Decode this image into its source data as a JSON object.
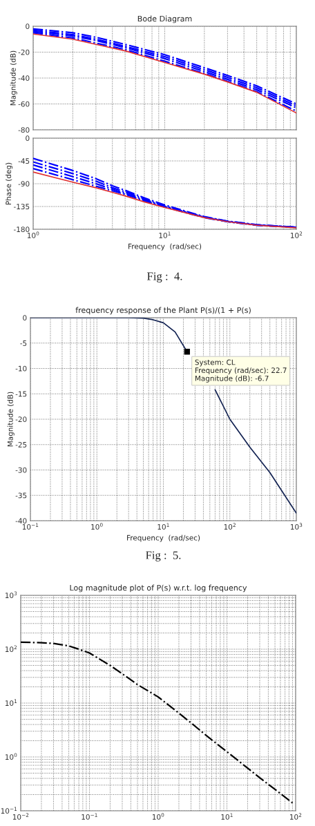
{
  "chart_data": [
    {
      "type": "line",
      "title": "Bode Diagram",
      "ylabel": "Magnitude (dB)",
      "log": "x",
      "grid": true,
      "tick_labels": "y",
      "xlim": [
        1,
        100
      ],
      "xticks": [
        {
          "value": 1,
          "label": null
        },
        {
          "value": 10,
          "label": null
        },
        {
          "value": 100,
          "label": null
        }
      ],
      "ylim": [
        -80,
        0
      ],
      "yticks": [
        -80,
        -60,
        -40,
        -20,
        0
      ],
      "x": [
        1,
        2,
        3,
        5,
        10,
        20,
        30,
        50,
        100
      ],
      "series": [
        {
          "color": "#0000ff",
          "line_style": "dashdot",
          "values": [
            -2,
            -5,
            -8.5,
            -14,
            -22,
            -32,
            -38,
            -46,
            -60
          ]
        },
        {
          "color": "#0000ff",
          "line_style": "dashdot",
          "values": [
            -3,
            -6.5,
            -10,
            -15.5,
            -23.5,
            -33.5,
            -39.5,
            -47.5,
            -61.5
          ]
        },
        {
          "color": "#0000ff",
          "line_style": "dashdot",
          "values": [
            -4,
            -7.5,
            -11,
            -16.5,
            -25,
            -35,
            -41,
            -49,
            -63
          ]
        },
        {
          "color": "#0000ff",
          "line_style": "dashdot",
          "values": [
            -5,
            -9,
            -13,
            -18,
            -27,
            -36.5,
            -42.5,
            -50.5,
            -65.5
          ]
        },
        {
          "color": "#e03030",
          "line_style": "solid",
          "values": [
            -6,
            -10,
            -14,
            -19,
            -28,
            -37,
            -43,
            -51,
            -67
          ]
        }
      ]
    },
    {
      "type": "line",
      "ylabel": "Phase (deg)",
      "xlabel": "Frequency  (rad/sec)",
      "log": "x",
      "grid": true,
      "xlim": [
        1,
        100
      ],
      "xticks": [
        {
          "value": 1,
          "label": "10$^{0}$"
        },
        {
          "value": 10,
          "label": "10$^{1}$"
        },
        {
          "value": 100,
          "label": "10$^{2}$"
        }
      ],
      "ylim": [
        -180,
        0
      ],
      "yticks": [
        -180,
        -135,
        -90,
        -45,
        0
      ],
      "x": [
        1,
        2,
        3,
        4,
        5,
        7,
        10,
        20,
        30,
        50,
        100
      ],
      "series": [
        {
          "color": "#0000ff",
          "line_style": "dashdot",
          "values": [
            -40,
            -64,
            -80,
            -94,
            -103,
            -118,
            -132,
            -155,
            -164,
            -171,
            -176
          ]
        },
        {
          "color": "#0000ff",
          "line_style": "dashdot",
          "values": [
            -47,
            -70,
            -85,
            -98,
            -106,
            -120,
            -134,
            -156,
            -164,
            -171,
            -176
          ]
        },
        {
          "color": "#0000ff",
          "line_style": "dashdot",
          "values": [
            -53,
            -76,
            -90,
            -101,
            -109,
            -122,
            -135,
            -156,
            -165,
            -172,
            -176
          ]
        },
        {
          "color": "#0000ff",
          "line_style": "dashdot",
          "values": [
            -60,
            -82,
            -95,
            -104,
            -111,
            -124,
            -136,
            -157,
            -165,
            -172,
            -176
          ]
        },
        {
          "color": "#e03030",
          "line_style": "solid",
          "values": [
            -67,
            -87,
            -98,
            -107,
            -114,
            -126,
            -137,
            -157,
            -165,
            -172,
            -177
          ]
        }
      ],
      "annotations": [
        "Fig :  4."
      ]
    },
    {
      "type": "line",
      "title": "frequency response of the Plant P(s)/(1 + P(s)",
      "ylabel": "Magnitude (dB)",
      "xlabel": "Frequency  (rad/sec)",
      "log": "x",
      "grid": true,
      "xlim": [
        0.1,
        1000
      ],
      "xticks": [
        {
          "value": 0.1,
          "label": "10$^{−1}$"
        },
        {
          "value": 1,
          "label": "10$^{0}$"
        },
        {
          "value": 10,
          "label": "10$^{1}$"
        },
        {
          "value": 100,
          "label": "10$^{2}$"
        },
        {
          "value": 1000,
          "label": "10$^{3}$"
        }
      ],
      "ylim": [
        -40,
        0
      ],
      "yticks": [
        -40,
        -35,
        -30,
        -25,
        -20,
        -15,
        -10,
        -5,
        0
      ],
      "x": [
        0.1,
        0.3,
        1,
        3,
        5,
        7,
        10,
        15,
        22.7,
        30,
        45,
        60,
        100,
        200,
        400,
        1000
      ],
      "series": [
        {
          "color": "#102050",
          "line_style": "solid",
          "values": [
            0,
            0,
            0,
            0,
            -0.1,
            -0.4,
            -1.0,
            -2.8,
            -6.7,
            null,
            null,
            -14.2,
            -20,
            -25.5,
            -30.5,
            -38.5
          ]
        }
      ],
      "annotations": [
        {
          "text": "System: CL\nFrequency (rad/sec): 22.7\nMagnitude (dB): -6.7",
          "x": 22.7,
          "y": -6.7
        },
        "Fig :  5."
      ]
    },
    {
      "type": "line",
      "title": "Log magnitude plot of P(s) w.r.t. log frequency",
      "log": "xy",
      "grid": true,
      "xlim": [
        0.01,
        100
      ],
      "xticks": [
        {
          "value": 0.01,
          "label": "10$^{−2}$"
        },
        {
          "value": 0.1,
          "label": "10$^{−1}$"
        },
        {
          "value": 1,
          "label": "10$^{0}$"
        },
        {
          "value": 10,
          "label": "10$^{1}$"
        },
        {
          "value": 100,
          "label": "10$^{2}$"
        }
      ],
      "ylim": [
        0.1,
        1000
      ],
      "yticks": [
        {
          "value": 0.1,
          "label": "10$^{−1}$"
        },
        {
          "value": 1,
          "label": "10$^{0}$"
        },
        {
          "value": 10,
          "label": "10$^{1}$"
        },
        {
          "value": 100,
          "label": "10$^{2}$"
        },
        {
          "value": 1000,
          "label": "10$^{3}$"
        }
      ],
      "x": [
        0.01,
        0.02,
        0.03,
        0.05,
        0.07,
        0.1,
        0.2,
        0.3,
        0.5,
        1,
        2,
        3,
        5,
        10,
        20,
        30,
        50,
        90
      ],
      "series": [
        {
          "color": "#000000",
          "line_style": "dashdot",
          "values": [
            135,
            132,
            128,
            115,
            100,
            85,
            50,
            35,
            22,
            13,
            6.5,
            4.3,
            2.5,
            1.25,
            0.62,
            0.41,
            0.25,
            0.14
          ]
        }
      ]
    }
  ]
}
